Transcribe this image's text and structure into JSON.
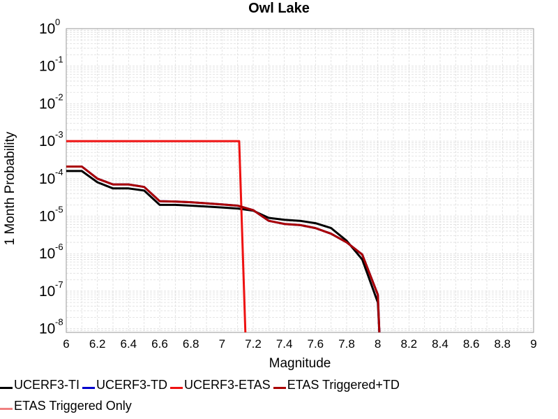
{
  "chart_data": {
    "type": "line",
    "title": "Owl Lake",
    "xlabel": "Magnitude",
    "ylabel": "1 Month Probability",
    "xlim": [
      6,
      9
    ],
    "ylim_log10": [
      -8.1,
      0
    ],
    "y_scale": "log",
    "grid": true,
    "legend_placement": "bottom",
    "x_ticks": [
      "6",
      "6.2",
      "6.4",
      "6.6",
      "6.8",
      "7",
      "7.2",
      "7.4",
      "7.6",
      "7.8",
      "8",
      "8.2",
      "8.4",
      "8.6",
      "8.8",
      "9"
    ],
    "y_tick_exponents": [
      "0",
      "-1",
      "-2",
      "-3",
      "-4",
      "-5",
      "-6",
      "-7",
      "-8"
    ],
    "y_tick_base": "10",
    "series": [
      {
        "name": "UCERF3-TI",
        "color": "#000000",
        "points": [
          [
            6.0,
            0.00016
          ],
          [
            6.1,
            0.00016
          ],
          [
            6.2,
            8e-05
          ],
          [
            6.3,
            5.5e-05
          ],
          [
            6.4,
            5.5e-05
          ],
          [
            6.5,
            4.8e-05
          ],
          [
            6.6,
            2e-05
          ],
          [
            6.7,
            2e-05
          ],
          [
            6.8,
            1.9e-05
          ],
          [
            6.9,
            1.8e-05
          ],
          [
            7.0,
            1.7e-05
          ],
          [
            7.1,
            1.6e-05
          ],
          [
            7.2,
            1.4e-05
          ],
          [
            7.3,
            9e-06
          ],
          [
            7.4,
            8e-06
          ],
          [
            7.5,
            7.5e-06
          ],
          [
            7.6,
            6.5e-06
          ],
          [
            7.7,
            4.8e-06
          ],
          [
            7.8,
            2.2e-06
          ],
          [
            7.9,
            7e-07
          ],
          [
            8.0,
            5e-08
          ],
          [
            8.01,
            1e-09
          ]
        ]
      },
      {
        "name": "UCERF3-TD",
        "color": "#0000cc",
        "points": [
          [
            6.0,
            0.00021
          ],
          [
            6.1,
            0.00021
          ],
          [
            6.2,
            0.0001
          ],
          [
            6.3,
            7e-05
          ],
          [
            6.4,
            7e-05
          ],
          [
            6.5,
            6e-05
          ],
          [
            6.6,
            2.5e-05
          ],
          [
            6.7,
            2.45e-05
          ],
          [
            6.8,
            2.35e-05
          ],
          [
            6.9,
            2.2e-05
          ],
          [
            7.0,
            2.05e-05
          ],
          [
            7.1,
            1.9e-05
          ],
          [
            7.2,
            1.45e-05
          ],
          [
            7.3,
            7.5e-06
          ],
          [
            7.4,
            6.2e-06
          ],
          [
            7.5,
            5.8e-06
          ],
          [
            7.6,
            4.8e-06
          ],
          [
            7.7,
            3.4e-06
          ],
          [
            7.8,
            2e-06
          ],
          [
            7.9,
            9.5e-07
          ],
          [
            8.0,
            8e-08
          ],
          [
            8.01,
            1e-09
          ]
        ]
      },
      {
        "name": "UCERF3-ETAS",
        "color": "#ee1111",
        "points": [
          [
            6.0,
            0.001
          ],
          [
            7.11,
            0.001
          ],
          [
            7.15,
            1e-09
          ]
        ]
      },
      {
        "name": "ETAS Triggered+TD",
        "color": "#aa0000",
        "points": [
          [
            6.0,
            0.00021
          ],
          [
            6.1,
            0.00021
          ],
          [
            6.2,
            0.0001
          ],
          [
            6.3,
            7e-05
          ],
          [
            6.4,
            7e-05
          ],
          [
            6.5,
            6e-05
          ],
          [
            6.6,
            2.5e-05
          ],
          [
            6.7,
            2.45e-05
          ],
          [
            6.8,
            2.35e-05
          ],
          [
            6.9,
            2.2e-05
          ],
          [
            7.0,
            2.05e-05
          ],
          [
            7.1,
            1.9e-05
          ],
          [
            7.2,
            1.45e-05
          ],
          [
            7.3,
            7.5e-06
          ],
          [
            7.4,
            6.2e-06
          ],
          [
            7.5,
            5.8e-06
          ],
          [
            7.6,
            4.8e-06
          ],
          [
            7.7,
            3.4e-06
          ],
          [
            7.8,
            2e-06
          ],
          [
            7.9,
            9.5e-07
          ],
          [
            8.0,
            8e-08
          ],
          [
            8.01,
            1e-09
          ]
        ]
      },
      {
        "name": "ETAS Triggered Only",
        "color": "#f08080",
        "points": []
      }
    ]
  }
}
